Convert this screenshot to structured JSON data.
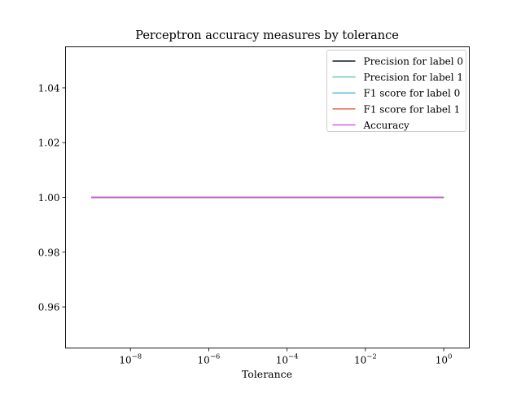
{
  "chart_data": {
    "type": "line",
    "title": "Perceptron accuracy measures by tolerance",
    "xlabel": "Tolerance",
    "ylabel": "",
    "xscale": "log",
    "x_range": [
      1e-09,
      1
    ],
    "xlim": [
      2.2e-10,
      4.5
    ],
    "ylim": [
      0.945,
      1.055
    ],
    "x_ticks": [
      {
        "value": 1e-08,
        "base": "10",
        "exp": "−8"
      },
      {
        "value": 1e-06,
        "base": "10",
        "exp": "−6"
      },
      {
        "value": 0.0001,
        "base": "10",
        "exp": "−4"
      },
      {
        "value": 0.01,
        "base": "10",
        "exp": "−2"
      },
      {
        "value": 1,
        "base": "10",
        "exp": "0"
      }
    ],
    "y_ticks": [
      {
        "value": 0.96,
        "label": "0.96"
      },
      {
        "value": 0.98,
        "label": "0.98"
      },
      {
        "value": 1.0,
        "label": "1.00"
      },
      {
        "value": 1.02,
        "label": "1.02"
      },
      {
        "value": 1.04,
        "label": "1.04"
      }
    ],
    "grid": false,
    "legend_position": "top-right",
    "series": [
      {
        "name": "Precision for label 0",
        "color": "#0a1a33",
        "values": [
          1.0,
          1.0
        ]
      },
      {
        "name": "Precision for label 1",
        "color": "#66c2a5",
        "values": [
          1.0,
          1.0
        ]
      },
      {
        "name": "F1 score for label 0",
        "color": "#4dbbd5",
        "values": [
          1.0,
          1.0
        ]
      },
      {
        "name": "F1 score for label 1",
        "color": "#f0524a",
        "values": [
          1.0,
          1.0
        ]
      },
      {
        "name": "Accuracy",
        "color": "#c15bd8",
        "values": [
          1.0,
          1.0
        ]
      }
    ]
  }
}
